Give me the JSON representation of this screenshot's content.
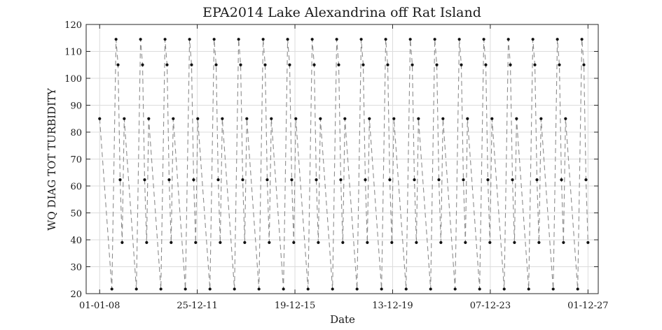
{
  "chart_data": {
    "type": "line",
    "title": "EPA2014 Lake Alexandrina off Rat Island",
    "xlabel": "Date",
    "ylabel": "WQ DIAG TOT TURBIDITY",
    "xlim": [
      "2007-06-14",
      "2028-05-02"
    ],
    "ylim": [
      20,
      120
    ],
    "yticks": [
      20,
      30,
      40,
      50,
      60,
      70,
      80,
      90,
      100,
      110,
      120
    ],
    "xticks": [
      "2008-01-01",
      "2011-12-25",
      "2015-12-19",
      "2019-12-13",
      "2023-12-07",
      "2027-12-01"
    ],
    "xtick_labels": [
      "01-01-08",
      "25-12-11",
      "19-12-15",
      "13-12-19",
      "07-12-23",
      "01-12-27"
    ],
    "grid": true,
    "marker_style": "dots",
    "line_style": "dashed",
    "series": [
      {
        "x": [
          "2008-01-01",
          "2008-07-01",
          "2008-09-01",
          "2008-10-01",
          "2008-11-01",
          "2008-12-01",
          "2009-01-01",
          "2009-07-01",
          "2009-09-01",
          "2009-10-01",
          "2009-11-01",
          "2009-12-01",
          "2010-01-01",
          "2010-07-01",
          "2010-09-01",
          "2010-10-01",
          "2010-11-01",
          "2010-12-01",
          "2011-01-01",
          "2011-07-01",
          "2011-09-01",
          "2011-10-01",
          "2011-11-01",
          "2011-12-01",
          "2012-01-01",
          "2012-07-01",
          "2012-09-01",
          "2012-10-01",
          "2012-11-01",
          "2012-12-01",
          "2013-01-01",
          "2013-07-01",
          "2013-09-01",
          "2013-10-01",
          "2013-11-01",
          "2013-12-01",
          "2014-01-01",
          "2014-07-01",
          "2014-09-01",
          "2014-10-01",
          "2014-11-01",
          "2014-12-01",
          "2015-01-01",
          "2015-07-01",
          "2015-09-01",
          "2015-10-01",
          "2015-11-01",
          "2015-12-01",
          "2016-01-01",
          "2016-07-01",
          "2016-09-01",
          "2016-10-01",
          "2016-11-01",
          "2016-12-01",
          "2017-01-01",
          "2017-07-01",
          "2017-09-01",
          "2017-10-01",
          "2017-11-01",
          "2017-12-01",
          "2018-01-01",
          "2018-07-01",
          "2018-09-01",
          "2018-10-01",
          "2018-11-01",
          "2018-12-01",
          "2019-01-01",
          "2019-07-01",
          "2019-09-01",
          "2019-10-01",
          "2019-11-01",
          "2019-12-01",
          "2020-01-01",
          "2020-07-01",
          "2020-09-01",
          "2020-10-01",
          "2020-11-01",
          "2020-12-01",
          "2021-01-01",
          "2021-07-01",
          "2021-09-01",
          "2021-10-01",
          "2021-11-01",
          "2021-12-01",
          "2022-01-01",
          "2022-07-01",
          "2022-09-01",
          "2022-10-01",
          "2022-11-01",
          "2022-12-01",
          "2023-01-01",
          "2023-07-01",
          "2023-09-01",
          "2023-10-01",
          "2023-11-01",
          "2023-12-01",
          "2024-01-01",
          "2024-07-01",
          "2024-09-01",
          "2024-10-01",
          "2024-11-01",
          "2024-12-01",
          "2025-01-01",
          "2025-07-01",
          "2025-09-01",
          "2025-10-01",
          "2025-11-01",
          "2025-12-01",
          "2026-01-01",
          "2026-07-01",
          "2026-09-01",
          "2026-10-01",
          "2026-11-01",
          "2026-12-01",
          "2027-01-01",
          "2027-07-01",
          "2027-09-01",
          "2027-10-01",
          "2027-11-01",
          "2027-12-01"
        ],
        "y": [
          85,
          21.7,
          114.5,
          105,
          62.3,
          39,
          85,
          21.7,
          114.5,
          105,
          62.3,
          39,
          85,
          21.7,
          114.5,
          105,
          62.3,
          39,
          85,
          21.7,
          114.5,
          105,
          62.3,
          39,
          85,
          21.7,
          114.5,
          105,
          62.3,
          39,
          85,
          21.7,
          114.5,
          105,
          62.3,
          39,
          85,
          21.7,
          114.5,
          105,
          62.3,
          39,
          85,
          21.7,
          114.5,
          105,
          62.3,
          39,
          85,
          21.7,
          114.5,
          105,
          62.3,
          39,
          85,
          21.7,
          114.5,
          105,
          62.3,
          39,
          85,
          21.7,
          114.5,
          105,
          62.3,
          39,
          85,
          21.7,
          114.5,
          105,
          62.3,
          39,
          85,
          21.7,
          114.5,
          105,
          62.3,
          39,
          85,
          21.7,
          114.5,
          105,
          62.3,
          39,
          85,
          21.7,
          114.5,
          105,
          62.3,
          39,
          85,
          21.7,
          114.5,
          105,
          62.3,
          39,
          85,
          21.7,
          114.5,
          105,
          62.3,
          39,
          85,
          21.7,
          114.5,
          105,
          62.3,
          39,
          85,
          21.7,
          114.5,
          105,
          62.3,
          39,
          85,
          21.7,
          114.5,
          105,
          62.3,
          39
        ]
      }
    ],
    "colors": {
      "line": "#8c8c8c",
      "marker": "#111111",
      "grid": "#dcdcdc",
      "frame": "#262626"
    }
  }
}
